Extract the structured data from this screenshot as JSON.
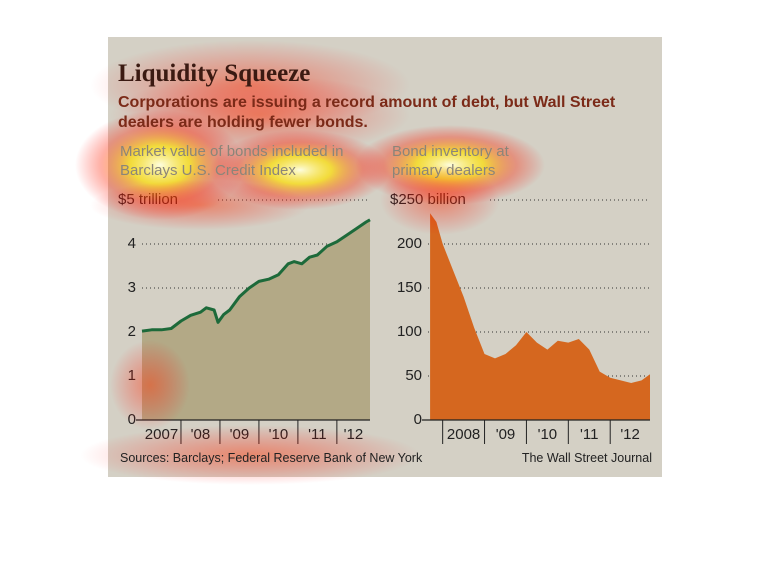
{
  "header": {
    "title": "Liquidity Squeeze",
    "subtitle": "Corporations are issuing a record amount of debt, but Wall Street dealers are holding fewer bonds."
  },
  "chart_data": [
    {
      "type": "area",
      "title": "Market value of bonds included in Barclays U.S. Credit Index",
      "color": "#b3a986",
      "line_color": "#1d6a3a",
      "x": [
        2007.0,
        2007.25,
        2007.5,
        2007.75,
        2008.0,
        2008.25,
        2008.5,
        2008.65,
        2008.85,
        2008.95,
        2009.1,
        2009.25,
        2009.5,
        2009.75,
        2010.0,
        2010.25,
        2010.5,
        2010.75,
        2010.9,
        2011.1,
        2011.3,
        2011.5,
        2011.75,
        2012.0,
        2012.25,
        2012.5,
        2012.75,
        2012.85
      ],
      "values": [
        2.02,
        2.05,
        2.05,
        2.08,
        2.25,
        2.38,
        2.45,
        2.55,
        2.5,
        2.22,
        2.4,
        2.5,
        2.8,
        3.0,
        3.15,
        3.2,
        3.3,
        3.55,
        3.6,
        3.55,
        3.7,
        3.75,
        3.95,
        4.05,
        4.2,
        4.35,
        4.5,
        4.55
      ],
      "xlim": [
        2007.0,
        2012.85
      ],
      "xticks": [
        {
          "value": 2007,
          "label": "2007"
        },
        {
          "value": 2008,
          "label": "'08"
        },
        {
          "value": 2009,
          "label": "'09"
        },
        {
          "value": 2010,
          "label": "'10"
        },
        {
          "value": 2011,
          "label": "'11"
        },
        {
          "value": 2012,
          "label": "'12"
        }
      ],
      "ylim": [
        0,
        5
      ],
      "yticks": [
        0,
        1,
        2,
        3,
        4,
        {
          "value": 5,
          "label": "$5 trillion"
        }
      ],
      "grid": true
    },
    {
      "type": "area",
      "title": "Bond inventory at primary dealers",
      "color": "#d5671f",
      "x": [
        2007.7,
        2007.85,
        2008.0,
        2008.25,
        2008.5,
        2008.75,
        2009.0,
        2009.25,
        2009.5,
        2009.75,
        2010.0,
        2010.25,
        2010.5,
        2010.75,
        2011.0,
        2011.25,
        2011.5,
        2011.75,
        2012.0,
        2012.25,
        2012.5,
        2012.75,
        2012.95
      ],
      "values": [
        235,
        225,
        200,
        170,
        140,
        105,
        75,
        70,
        75,
        85,
        100,
        88,
        80,
        90,
        88,
        92,
        80,
        55,
        48,
        45,
        42,
        45,
        52
      ],
      "xlim": [
        2007.65,
        2012.95
      ],
      "xticks": [
        {
          "value": 2008,
          "label": "2008"
        },
        {
          "value": 2009,
          "label": "'09"
        },
        {
          "value": 2010,
          "label": "'10"
        },
        {
          "value": 2011,
          "label": "'11"
        },
        {
          "value": 2012,
          "label": "'12"
        }
      ],
      "ylim": [
        0,
        250
      ],
      "yticks": [
        0,
        50,
        100,
        150,
        200,
        {
          "value": 250,
          "label": "$250 billion"
        }
      ],
      "grid": true
    }
  ],
  "footer": {
    "source": "Sources: Barclays; Federal Reserve Bank of New York",
    "credit": "The Wall Street Journal"
  }
}
